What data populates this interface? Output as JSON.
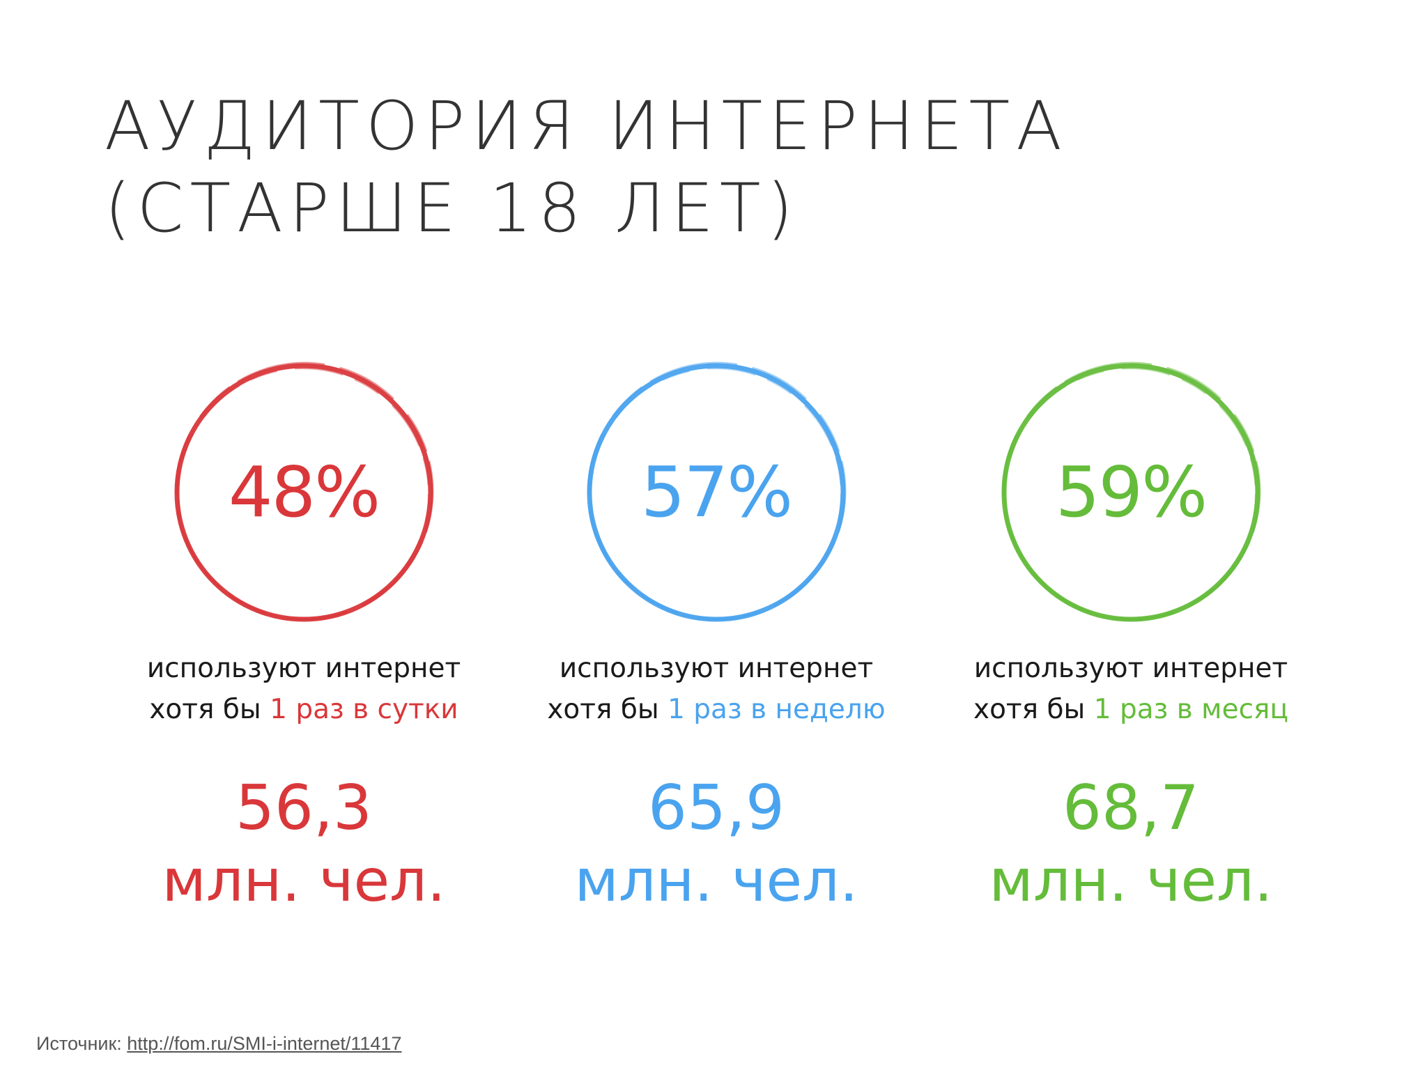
{
  "title": {
    "line1": "АУДИТОРИЯ ИНТЕРНЕТА",
    "line2": "(СТАРШЕ 18 ЛЕТ)"
  },
  "stats": [
    {
      "percent": "48%",
      "line1": "используют интернет",
      "prefix": "хотя бы",
      "frequency": "1 раз в сутки",
      "count": "56,3",
      "unit": "млн. чел.",
      "color": "#d9373a"
    },
    {
      "percent": "57%",
      "line1": "используют интернет",
      "prefix": "хотя бы",
      "frequency": "1 раз в неделю",
      "count": "65,9",
      "unit": "млн. чел.",
      "color": "#4aa3ee"
    },
    {
      "percent": "59%",
      "line1": "используют интернет",
      "prefix": "хотя бы",
      "frequency": "1 раз в месяц",
      "count": "68,7",
      "unit": "млн. чел.",
      "color": "#64bc3a"
    }
  ],
  "source": {
    "label": "Источник:",
    "link": "http://fom.ru/SMI-i-internet/11417"
  }
}
